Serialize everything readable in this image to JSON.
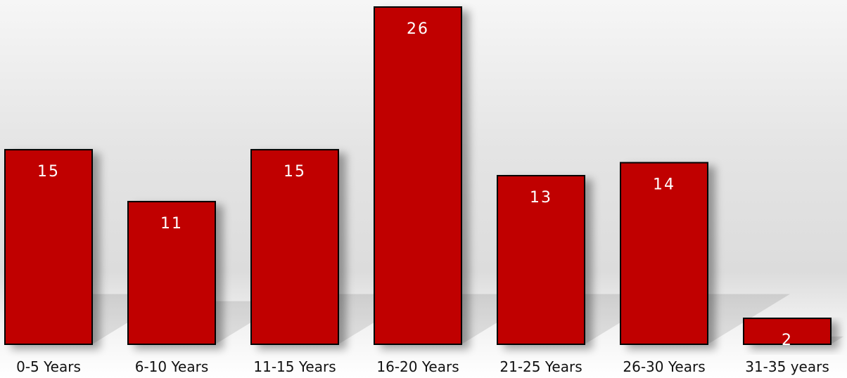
{
  "chart_data": {
    "type": "bar",
    "categories": [
      "0-5 Years",
      "6-10 Years",
      "11-15 Years",
      "16-20 Years",
      "21-25 Years",
      "26-30 Years",
      "31-35 years"
    ],
    "values": [
      15,
      11,
      15,
      26,
      13,
      14,
      2
    ],
    "title": "",
    "xlabel": "",
    "ylabel": "",
    "ylim": [
      0,
      26
    ],
    "grid": false,
    "legend": "none",
    "data_labels": true,
    "bar_color": "#c00000",
    "bar_outline_color": "#000000",
    "label_color": "#ffffff"
  }
}
